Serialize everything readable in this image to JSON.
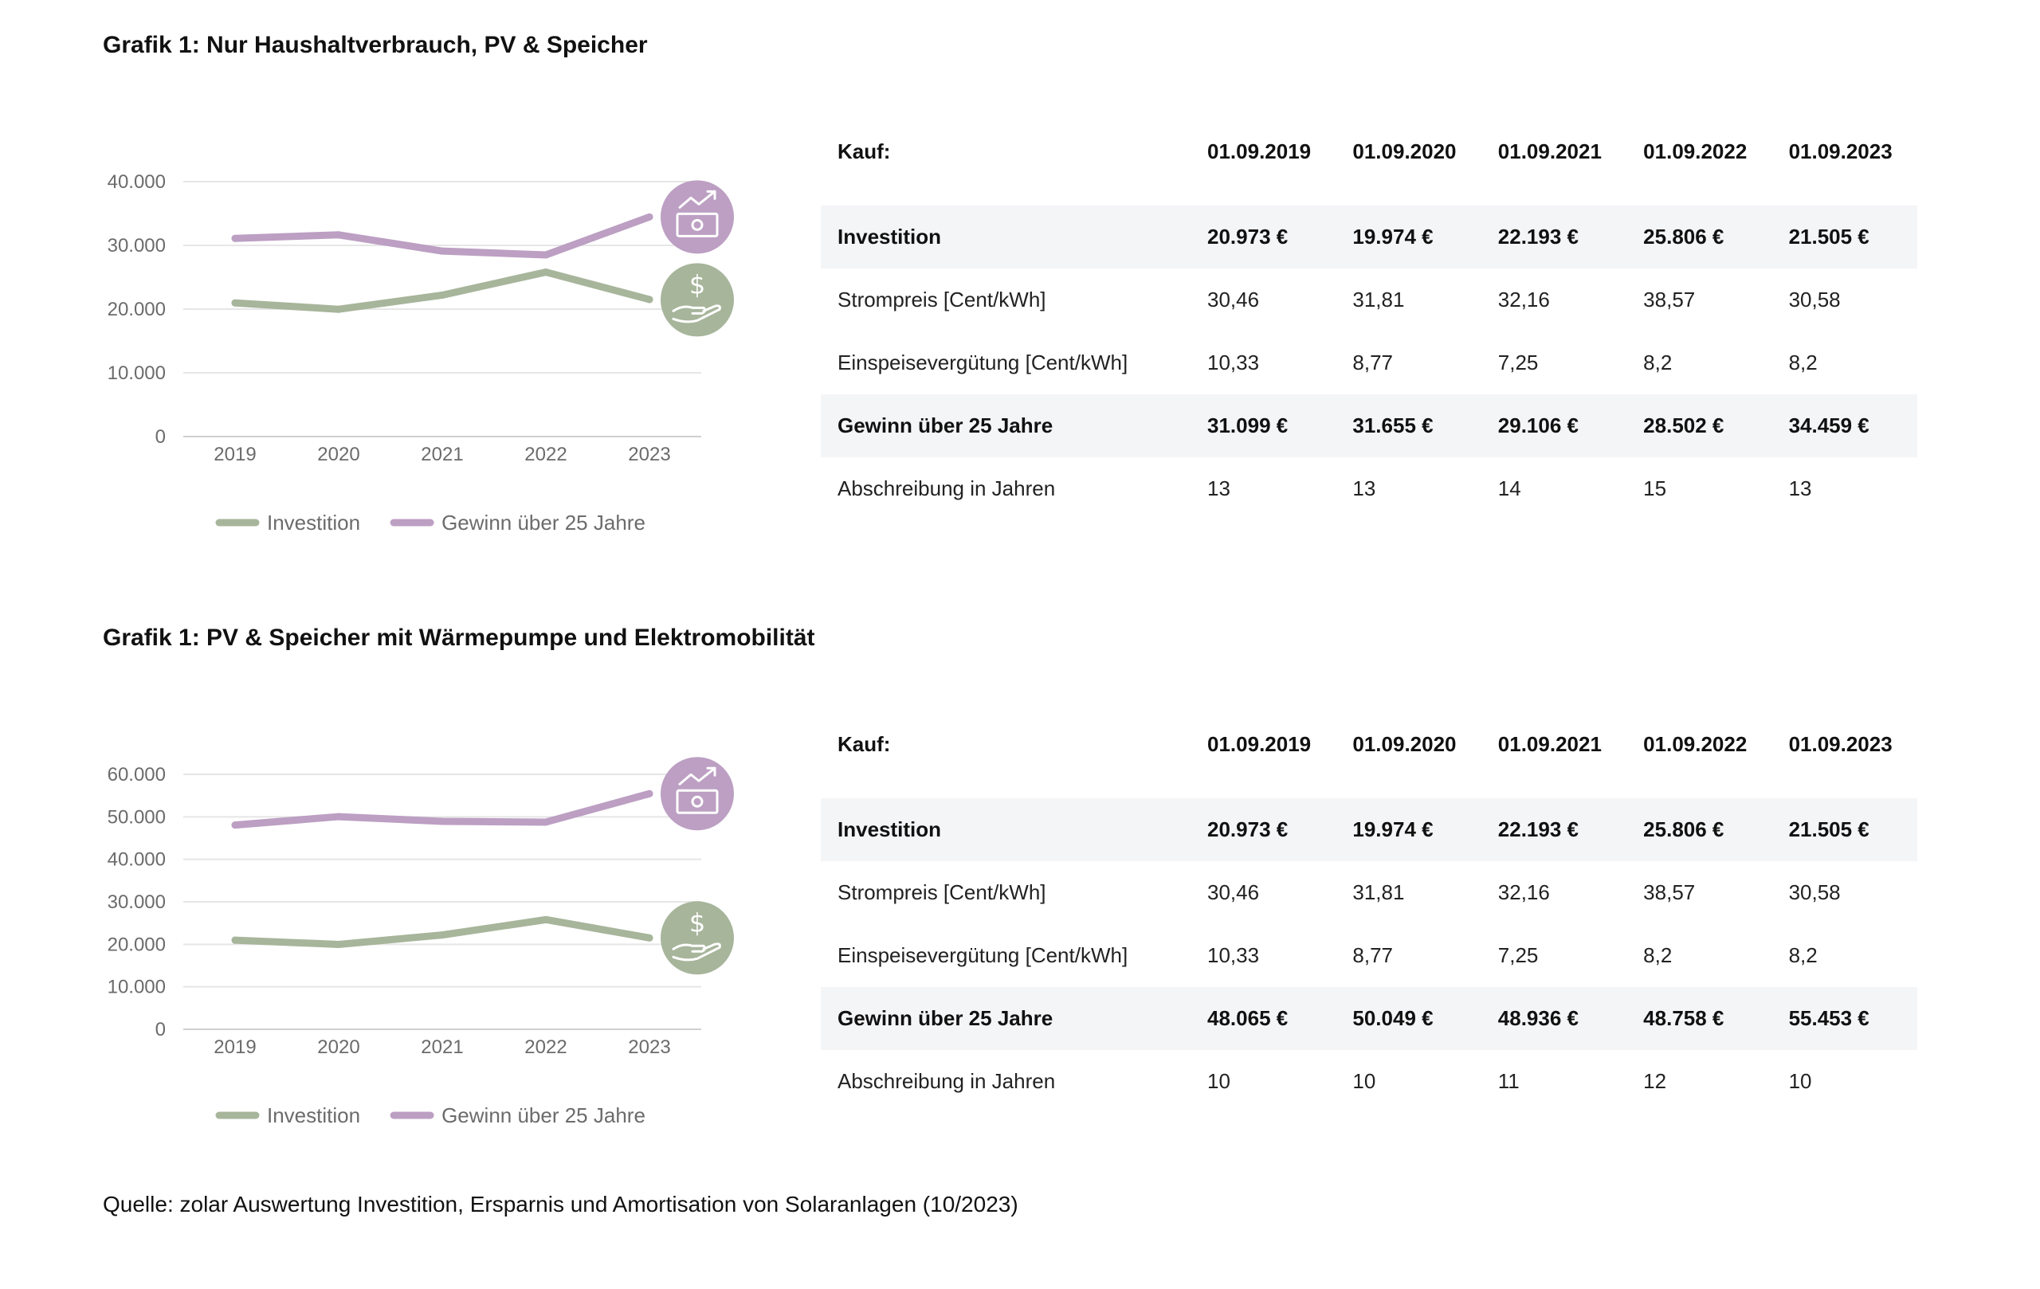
{
  "sections": [
    {
      "title": "Grafik 1: Nur Haushaltverbrauch, PV & Speicher",
      "chart_data": {
        "type": "line",
        "categories": [
          "2019",
          "2020",
          "2021",
          "2022",
          "2023"
        ],
        "series": [
          {
            "name": "Investition",
            "values": [
              20973,
              19974,
              22193,
              25806,
              21505
            ],
            "color": "#a7b59b",
            "icon": "money-hand-icon"
          },
          {
            "name": "Gewinn über 25 Jahre",
            "values": [
              31099,
              31655,
              29106,
              28502,
              34459
            ],
            "color": "#bc9fc3",
            "icon": "money-growth-icon"
          }
        ],
        "yticks": [
          "0",
          "10.000",
          "20.000",
          "30.000",
          "40.000"
        ],
        "ylim": [
          0,
          40000
        ],
        "legend": "bottom",
        "grid": true
      },
      "table": {
        "header": [
          "Kauf:",
          "01.09.2019",
          "01.09.2020",
          "01.09.2021",
          "01.09.2022",
          "01.09.2023"
        ],
        "rows": [
          {
            "label": "Investition",
            "values": [
              "20.973 €",
              "19.974 €",
              "22.193 €",
              "25.806 €",
              "21.505 €"
            ],
            "shaded": true
          },
          {
            "label": "Strompreis [Cent/kWh]",
            "values": [
              "30,46",
              "31,81",
              "32,16",
              "38,57",
              "30,58"
            ],
            "shaded": false
          },
          {
            "label": "Einspeisevergütung [Cent/kWh]",
            "values": [
              "10,33",
              "8,77",
              "7,25",
              "8,2",
              "8,2"
            ],
            "shaded": false
          },
          {
            "label": "Gewinn über 25 Jahre",
            "values": [
              "31.099 €",
              "31.655 €",
              "29.106 €",
              "28.502 €",
              "34.459 €"
            ],
            "shaded": true
          },
          {
            "label": "Abschreibung in Jahren",
            "values": [
              "13",
              "13",
              "14",
              "15",
              "13"
            ],
            "shaded": false
          }
        ]
      }
    },
    {
      "title": "Grafik 1: PV & Speicher mit Wärmepumpe und Elektromobilität",
      "chart_data": {
        "type": "line",
        "categories": [
          "2019",
          "2020",
          "2021",
          "2022",
          "2023"
        ],
        "series": [
          {
            "name": "Investition",
            "values": [
              20973,
              19974,
              22193,
              25806,
              21505
            ],
            "color": "#a7b59b",
            "icon": "money-hand-icon"
          },
          {
            "name": "Gewinn über 25 Jahre",
            "values": [
              48065,
              50049,
              48936,
              48758,
              55453
            ],
            "color": "#bc9fc3",
            "icon": "money-growth-icon"
          }
        ],
        "yticks": [
          "0",
          "10.000",
          "20.000",
          "30.000",
          "40.000",
          "50.000",
          "60.000"
        ],
        "ylim": [
          0,
          60000
        ],
        "legend": "bottom",
        "grid": true
      },
      "table": {
        "header": [
          "Kauf:",
          "01.09.2019",
          "01.09.2020",
          "01.09.2021",
          "01.09.2022",
          "01.09.2023"
        ],
        "rows": [
          {
            "label": "Investition",
            "values": [
              "20.973 €",
              "19.974 €",
              "22.193 €",
              "25.806 €",
              "21.505 €"
            ],
            "shaded": true
          },
          {
            "label": "Strompreis [Cent/kWh]",
            "values": [
              "30,46",
              "31,81",
              "32,16",
              "38,57",
              "30,58"
            ],
            "shaded": false
          },
          {
            "label": "Einspeisevergütung [Cent/kWh]",
            "values": [
              "10,33",
              "8,77",
              "7,25",
              "8,2",
              "8,2"
            ],
            "shaded": false
          },
          {
            "label": "Gewinn über 25 Jahre",
            "values": [
              "48.065 €",
              "50.049 €",
              "48.936 €",
              "48.758 €",
              "55.453 €"
            ],
            "shaded": true
          },
          {
            "label": "Abschreibung in Jahren",
            "values": [
              "10",
              "10",
              "11",
              "12",
              "10"
            ],
            "shaded": false
          }
        ]
      }
    }
  ],
  "source": "Quelle: zolar Auswertung Investition, Ersparnis und Amortisation von Solaranlagen (10/2023)"
}
